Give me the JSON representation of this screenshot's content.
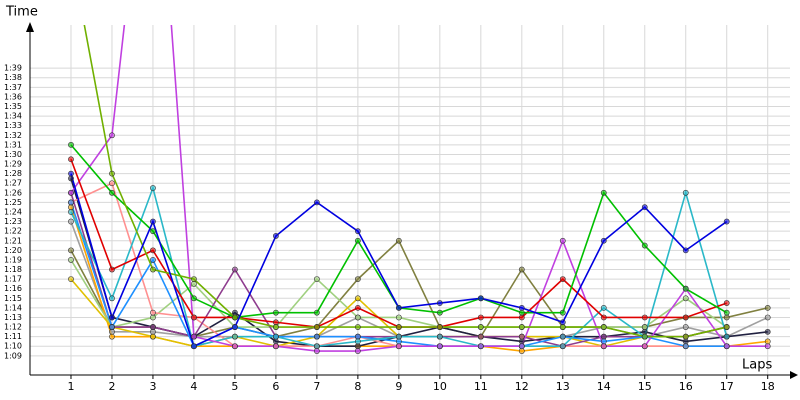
{
  "chart_data": {
    "type": "line",
    "y_label": "Time",
    "x_label": "Laps",
    "grid": true,
    "x": [
      1,
      2,
      3,
      4,
      5,
      6,
      7,
      8,
      9,
      10,
      11,
      12,
      13,
      14,
      15,
      16,
      17,
      18
    ],
    "xlim": [
      0,
      18.3
    ],
    "xticks": [
      1,
      2,
      3,
      4,
      5,
      6,
      7,
      8,
      9,
      10,
      11,
      12,
      13,
      14,
      15,
      16,
      17,
      18
    ],
    "ylim": [
      67,
      103.5
    ],
    "yticks": [
      {
        "value": 69,
        "label": "1:09"
      },
      {
        "value": 70,
        "label": "1:10"
      },
      {
        "value": 71,
        "label": "1:11"
      },
      {
        "value": 72,
        "label": "1:12"
      },
      {
        "value": 73,
        "label": "1:13"
      },
      {
        "value": 74,
        "label": "1:14"
      },
      {
        "value": 75,
        "label": "1:15"
      },
      {
        "value": 76,
        "label": "1:16"
      },
      {
        "value": 77,
        "label": "1:17"
      },
      {
        "value": 78,
        "label": "1:18"
      },
      {
        "value": 79,
        "label": "1:19"
      },
      {
        "value": 80,
        "label": "1:20"
      },
      {
        "value": 81,
        "label": "1:21"
      },
      {
        "value": 82,
        "label": "1:22"
      },
      {
        "value": 83,
        "label": "1:23"
      },
      {
        "value": 84,
        "label": "1:24"
      },
      {
        "value": 85,
        "label": "1:25"
      },
      {
        "value": 86,
        "label": "1:26"
      },
      {
        "value": 87,
        "label": "1:27"
      },
      {
        "value": 88,
        "label": "1:28"
      },
      {
        "value": 89,
        "label": "1:29"
      },
      {
        "value": 90,
        "label": "1:30"
      },
      {
        "value": 91,
        "label": "1:31"
      },
      {
        "value": 92,
        "label": "1:32"
      },
      {
        "value": 93,
        "label": "1:33"
      },
      {
        "value": 94,
        "label": "1:34"
      },
      {
        "value": 95,
        "label": "1:35"
      },
      {
        "value": 96,
        "label": "1:36"
      },
      {
        "value": 97,
        "label": "1:37"
      },
      {
        "value": 98,
        "label": "1:38"
      },
      {
        "value": 99,
        "label": "1:39"
      }
    ],
    "series": [
      {
        "color": "#808040",
        "values": [
          80,
          72,
          72,
          71,
          72,
          71,
          72,
          77,
          81,
          72,
          71,
          78,
          72,
          72,
          72,
          73,
          73,
          74
        ]
      },
      {
        "color": "#a0a0a0",
        "values": [
          83,
          71.5,
          71.5,
          71,
          71,
          71,
          71,
          73,
          71,
          71,
          71,
          71,
          71,
          72,
          71,
          72,
          71,
          73
        ]
      },
      {
        "color": "#ffa500",
        "values": [
          84.5,
          71,
          71,
          70,
          70,
          70,
          70,
          70,
          70,
          70,
          70,
          69.5,
          70,
          70,
          70,
          70,
          70,
          70.5
        ]
      },
      {
        "color": "#202040",
        "values": [
          87.5,
          73,
          72,
          71,
          73.5,
          70.5,
          70,
          70,
          71,
          72,
          71,
          70.5,
          71,
          71,
          71.5,
          70.5,
          71,
          71.5
        ]
      },
      {
        "color": "#a0d080",
        "values": [
          79,
          72,
          73,
          76.5,
          72,
          72,
          77,
          73,
          73,
          72,
          72,
          72,
          72,
          72,
          72,
          75,
          72,
          null
        ]
      },
      {
        "color": "#e0c000",
        "values": [
          77,
          72,
          71,
          70,
          71,
          70,
          71,
          75,
          71,
          71,
          71,
          71,
          71,
          70,
          71,
          71,
          72,
          null
        ]
      },
      {
        "color": "#ff9090",
        "values": [
          85,
          87,
          73.5,
          73,
          70,
          70,
          70,
          71,
          70,
          70,
          70,
          70,
          70,
          70,
          70,
          70,
          70,
          null
        ]
      },
      {
        "color": "#8e3c8e",
        "values": [
          86,
          72,
          72,
          71,
          78,
          71,
          71,
          71,
          71,
          71,
          71,
          71,
          70,
          71,
          71,
          71,
          72,
          null
        ]
      },
      {
        "color": "#1e90ff",
        "values": [
          85,
          72,
          79,
          70,
          72,
          71,
          71,
          71,
          70.5,
          70,
          70,
          70,
          71,
          70.5,
          71,
          70,
          70,
          null
        ]
      },
      {
        "color": "#2ab8c8",
        "values": [
          84,
          75,
          86.5,
          70,
          71,
          71,
          70,
          70.5,
          71,
          71,
          70,
          70,
          70,
          74,
          71,
          86,
          71,
          null
        ]
      },
      {
        "color": "#c040e0",
        "values": [
          86,
          92,
          130,
          71,
          70,
          70,
          69.5,
          69.5,
          70,
          70,
          70,
          70,
          81,
          70,
          70,
          76,
          70,
          70
        ]
      },
      {
        "color": "#e00000",
        "values": [
          89.5,
          78,
          80,
          73,
          73,
          72.5,
          72,
          74,
          72,
          72,
          73,
          73,
          77,
          73,
          73,
          73,
          74.5,
          null
        ]
      },
      {
        "color": "#00c000",
        "values": [
          91,
          86,
          82,
          75,
          73,
          73.5,
          73.5,
          81,
          74,
          73.5,
          75,
          73.5,
          73.5,
          86,
          80.5,
          76,
          73.5,
          null
        ]
      },
      {
        "color": "#70b000",
        "values": [
          111,
          88,
          78,
          77,
          73,
          72,
          72,
          72,
          72,
          72,
          72,
          72,
          72,
          72,
          71,
          71,
          72,
          null
        ]
      },
      {
        "color": "#0000e0",
        "values": [
          88,
          73,
          83,
          70,
          72,
          81.5,
          85,
          82,
          74,
          74.5,
          75,
          74,
          72.5,
          81,
          84.5,
          80,
          83,
          null
        ]
      }
    ]
  }
}
